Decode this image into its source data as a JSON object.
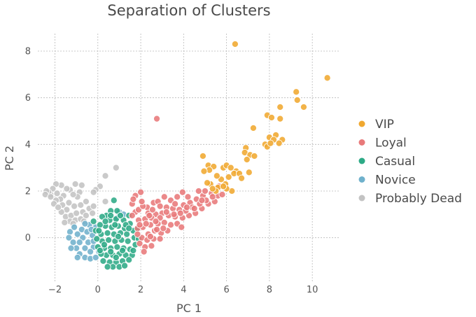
{
  "chart_data": {
    "type": "scatter",
    "title": "Separation of Clusters",
    "xlabel": "PC 1",
    "ylabel": "PC 2",
    "xlim": [
      -2.8,
      11.3
    ],
    "ylim": [
      -1.9,
      8.75
    ],
    "xticks": [
      -2,
      0,
      2,
      4,
      6,
      8,
      10
    ],
    "yticks": [
      0,
      2,
      4,
      6,
      8
    ],
    "grid": true,
    "legend_position": "right",
    "series": [
      {
        "name": "VIP",
        "color": "#f0a830",
        "points": [
          [
            6.4,
            8.3
          ],
          [
            10.7,
            6.85
          ],
          [
            9.25,
            6.25
          ],
          [
            9.3,
            5.9
          ],
          [
            9.6,
            5.6
          ],
          [
            8.5,
            5.6
          ],
          [
            7.9,
            5.25
          ],
          [
            8.1,
            5.15
          ],
          [
            8.5,
            5.1
          ],
          [
            7.25,
            4.7
          ],
          [
            8.0,
            4.3
          ],
          [
            8.3,
            4.4
          ],
          [
            8.2,
            4.2
          ],
          [
            8.6,
            4.2
          ],
          [
            8.45,
            4.05
          ],
          [
            7.8,
            4.0
          ],
          [
            7.9,
            3.9
          ],
          [
            8.05,
            4.05
          ],
          [
            6.9,
            3.85
          ],
          [
            6.85,
            3.65
          ],
          [
            7.1,
            3.55
          ],
          [
            7.3,
            3.5
          ],
          [
            6.95,
            3.35
          ],
          [
            4.9,
            3.5
          ],
          [
            5.15,
            3.1
          ],
          [
            5.4,
            3.05
          ],
          [
            5.2,
            2.9
          ],
          [
            4.95,
            2.85
          ],
          [
            5.85,
            3.0
          ],
          [
            6.0,
            3.1
          ],
          [
            6.2,
            3.0
          ],
          [
            6.45,
            2.85
          ],
          [
            6.35,
            2.75
          ],
          [
            6.6,
            2.75
          ],
          [
            7.05,
            2.8
          ],
          [
            6.7,
            2.55
          ],
          [
            6.1,
            2.6
          ],
          [
            5.75,
            2.5
          ],
          [
            5.55,
            2.65
          ],
          [
            5.95,
            2.3
          ],
          [
            5.25,
            2.3
          ],
          [
            5.6,
            2.15
          ],
          [
            6.25,
            2.0
          ],
          [
            6.0,
            2.1
          ],
          [
            5.5,
            2.0
          ],
          [
            5.85,
            2.2
          ],
          [
            5.35,
            2.1
          ],
          [
            5.1,
            2.35
          ]
        ]
      },
      {
        "name": "Loyal",
        "color": "#e8797a",
        "points": [
          [
            2.75,
            5.1
          ],
          [
            2.0,
            1.95
          ],
          [
            1.75,
            1.8
          ],
          [
            1.6,
            1.45
          ],
          [
            2.3,
            1.3
          ],
          [
            2.6,
            1.5
          ],
          [
            2.8,
            1.55
          ],
          [
            3.1,
            1.75
          ],
          [
            3.4,
            1.6
          ],
          [
            3.7,
            1.75
          ],
          [
            3.95,
            1.95
          ],
          [
            4.0,
            1.4
          ],
          [
            3.8,
            1.2
          ],
          [
            4.3,
            1.5
          ],
          [
            4.6,
            1.65
          ],
          [
            4.9,
            1.8
          ],
          [
            5.0,
            2.0
          ],
          [
            5.3,
            1.9
          ],
          [
            5.6,
            1.8
          ],
          [
            5.8,
            1.85
          ],
          [
            5.45,
            1.55
          ],
          [
            5.15,
            1.45
          ],
          [
            4.85,
            1.25
          ],
          [
            4.55,
            1.05
          ],
          [
            4.25,
            0.95
          ],
          [
            3.95,
            0.85
          ],
          [
            3.6,
            0.9
          ],
          [
            3.3,
            0.95
          ],
          [
            3.0,
            1.05
          ],
          [
            2.7,
            1.0
          ],
          [
            2.5,
            0.85
          ],
          [
            2.2,
            0.8
          ],
          [
            1.9,
            0.75
          ],
          [
            1.85,
            0.4
          ],
          [
            2.1,
            0.45
          ],
          [
            2.45,
            0.55
          ],
          [
            2.8,
            0.6
          ],
          [
            3.1,
            0.65
          ],
          [
            3.4,
            0.55
          ],
          [
            3.7,
            0.6
          ],
          [
            3.9,
            0.45
          ],
          [
            3.25,
            0.3
          ],
          [
            2.95,
            0.2
          ],
          [
            2.65,
            0.3
          ],
          [
            2.35,
            0.15
          ],
          [
            2.05,
            0.0
          ],
          [
            1.95,
            -0.25
          ],
          [
            2.3,
            -0.1
          ],
          [
            2.6,
            -0.05
          ],
          [
            2.9,
            -0.05
          ],
          [
            2.2,
            -0.4
          ],
          [
            2.5,
            -0.35
          ],
          [
            2.15,
            -0.6
          ],
          [
            2.45,
            0.05
          ],
          [
            2.75,
            0.35
          ],
          [
            3.05,
            0.4
          ],
          [
            3.5,
            1.25
          ],
          [
            4.1,
            1.15
          ],
          [
            4.4,
            1.3
          ],
          [
            4.75,
            1.45
          ],
          [
            1.75,
            1.1
          ],
          [
            1.6,
            0.95
          ],
          [
            1.9,
            1.2
          ],
          [
            2.1,
            1.35
          ],
          [
            2.35,
            1.05
          ],
          [
            2.9,
            1.35
          ],
          [
            3.2,
            1.3
          ],
          [
            5.65,
            2.2
          ],
          [
            4.7,
            2.0
          ],
          [
            4.2,
            1.75
          ],
          [
            3.6,
            1.45
          ],
          [
            2.55,
            1.2
          ],
          [
            2.05,
            1.55
          ],
          [
            1.65,
            1.65
          ],
          [
            3.85,
            1.05
          ],
          [
            4.5,
            1.25
          ],
          [
            5.05,
            1.6
          ],
          [
            5.35,
            1.75
          ],
          [
            2.9,
            0.85
          ],
          [
            2.25,
            0.6
          ],
          [
            1.85,
            0.15
          ],
          [
            3.55,
            1.0
          ],
          [
            2.7,
            0.7
          ],
          [
            3.2,
            1.1
          ],
          [
            4.15,
            1.3
          ],
          [
            4.85,
            1.6
          ],
          [
            2.4,
            0.95
          ],
          [
            1.95,
            0.55
          ]
        ]
      },
      {
        "name": "Casual",
        "color": "#2daa86",
        "points": [
          [
            0.75,
            1.6
          ],
          [
            0.6,
            1.15
          ],
          [
            0.9,
            1.15
          ],
          [
            0.4,
            0.95
          ],
          [
            0.2,
            0.9
          ],
          [
            0.55,
            0.75
          ],
          [
            0.85,
            0.8
          ],
          [
            1.2,
            0.75
          ],
          [
            1.45,
            0.95
          ],
          [
            1.5,
            0.6
          ],
          [
            1.25,
            0.4
          ],
          [
            0.95,
            0.5
          ],
          [
            0.65,
            0.45
          ],
          [
            0.35,
            0.5
          ],
          [
            0.1,
            0.55
          ],
          [
            -0.1,
            0.3
          ],
          [
            0.15,
            0.15
          ],
          [
            0.45,
            0.2
          ],
          [
            0.75,
            0.15
          ],
          [
            1.05,
            0.2
          ],
          [
            1.35,
            0.15
          ],
          [
            1.65,
            0.3
          ],
          [
            1.7,
            0.0
          ],
          [
            1.4,
            -0.15
          ],
          [
            1.1,
            -0.1
          ],
          [
            0.8,
            -0.15
          ],
          [
            0.5,
            -0.1
          ],
          [
            0.2,
            -0.15
          ],
          [
            -0.05,
            -0.05
          ],
          [
            0.0,
            -0.4
          ],
          [
            0.3,
            -0.45
          ],
          [
            0.6,
            -0.45
          ],
          [
            0.9,
            -0.4
          ],
          [
            1.2,
            -0.45
          ],
          [
            1.5,
            -0.5
          ],
          [
            1.75,
            -0.3
          ],
          [
            1.6,
            -0.75
          ],
          [
            1.3,
            -0.75
          ],
          [
            1.0,
            -0.7
          ],
          [
            0.7,
            -0.75
          ],
          [
            0.4,
            -0.75
          ],
          [
            0.15,
            -0.7
          ],
          [
            0.25,
            -1.0
          ],
          [
            0.55,
            -1.05
          ],
          [
            0.85,
            -1.05
          ],
          [
            1.15,
            -1.0
          ],
          [
            1.45,
            -0.95
          ],
          [
            0.7,
            -1.25
          ],
          [
            1.0,
            -1.25
          ],
          [
            0.45,
            -1.25
          ],
          [
            1.25,
            -1.2
          ],
          [
            0.85,
            -0.85
          ],
          [
            0.35,
            0.7
          ],
          [
            1.05,
            0.95
          ],
          [
            1.3,
            0.55
          ],
          [
            0.6,
            0.95
          ],
          [
            -0.2,
            0.7
          ],
          [
            1.85,
            0.4
          ],
          [
            1.9,
            -0.05
          ],
          [
            1.65,
            -0.55
          ],
          [
            0.05,
            0.3
          ],
          [
            0.95,
            0.05
          ],
          [
            0.3,
            -0.3
          ],
          [
            1.15,
            -0.55
          ],
          [
            0.6,
            -0.6
          ],
          [
            1.45,
            0.4
          ],
          [
            0.8,
            0.55
          ],
          [
            0.1,
            -0.55
          ]
        ]
      },
      {
        "name": "Novice",
        "color": "#6fb1cc",
        "points": [
          [
            -1.3,
            0.25
          ],
          [
            -1.35,
            0.0
          ],
          [
            -1.15,
            -0.2
          ],
          [
            -1.0,
            -0.45
          ],
          [
            -0.85,
            -0.7
          ],
          [
            -0.6,
            -0.85
          ],
          [
            -0.35,
            -0.9
          ],
          [
            -0.1,
            -0.85
          ],
          [
            -0.95,
            0.15
          ],
          [
            -0.7,
            0.0
          ],
          [
            -0.45,
            -0.2
          ],
          [
            -0.2,
            -0.4
          ],
          [
            0.05,
            -0.6
          ],
          [
            -0.75,
            0.35
          ],
          [
            -0.5,
            0.25
          ],
          [
            -0.25,
            0.1
          ],
          [
            -1.1,
            0.45
          ],
          [
            -0.6,
            -0.45
          ],
          [
            -0.85,
            -0.2
          ],
          [
            -0.35,
            -0.6
          ],
          [
            -0.1,
            0.45
          ],
          [
            -0.4,
            0.55
          ],
          [
            -1.25,
            -0.45
          ],
          [
            -0.95,
            -0.85
          ],
          [
            -0.2,
            -0.15
          ],
          [
            1.0,
            1.1
          ],
          [
            1.2,
            1.0
          ],
          [
            0.9,
            0.85
          ],
          [
            -0.6,
            0.6
          ],
          [
            -0.3,
            0.35
          ]
        ]
      },
      {
        "name": "Probably Dead",
        "color": "#c3c3c3",
        "points": [
          [
            0.85,
            3.0
          ],
          [
            0.35,
            2.65
          ],
          [
            0.1,
            2.2
          ],
          [
            -0.1,
            2.05
          ],
          [
            -0.2,
            1.95
          ],
          [
            -1.05,
            2.3
          ],
          [
            -1.3,
            2.05
          ],
          [
            -0.75,
            2.25
          ],
          [
            -0.85,
            1.95
          ],
          [
            -0.95,
            1.75
          ],
          [
            -1.15,
            1.85
          ],
          [
            -1.45,
            2.1
          ],
          [
            -1.7,
            2.25
          ],
          [
            -1.95,
            2.3
          ],
          [
            -2.1,
            2.1
          ],
          [
            -2.2,
            1.85
          ],
          [
            -2.3,
            1.95
          ],
          [
            -2.4,
            2.0
          ],
          [
            -2.45,
            1.85
          ],
          [
            -2.2,
            1.75
          ],
          [
            -1.9,
            1.9
          ],
          [
            -1.6,
            1.8
          ],
          [
            -1.75,
            1.65
          ],
          [
            -1.95,
            1.6
          ],
          [
            -2.05,
            1.45
          ],
          [
            -1.65,
            1.4
          ],
          [
            -1.35,
            1.5
          ],
          [
            -1.1,
            1.35
          ],
          [
            -0.8,
            1.4
          ],
          [
            -0.55,
            1.55
          ],
          [
            -1.45,
            1.2
          ],
          [
            -1.7,
            1.1
          ],
          [
            -1.5,
            0.9
          ],
          [
            -1.25,
            0.95
          ],
          [
            -1.0,
            1.05
          ],
          [
            -0.7,
            1.1
          ],
          [
            -0.4,
            1.25
          ],
          [
            -1.3,
            0.7
          ],
          [
            -1.05,
            0.75
          ],
          [
            -0.8,
            0.8
          ],
          [
            -0.55,
            0.95
          ],
          [
            -1.55,
            0.65
          ],
          [
            0.35,
            1.55
          ],
          [
            -0.25,
            1.05
          ],
          [
            -1.85,
            1.3
          ],
          [
            -0.2,
            1.35
          ],
          [
            -0.65,
            0.7
          ],
          [
            -1.15,
            0.6
          ]
        ]
      }
    ]
  }
}
